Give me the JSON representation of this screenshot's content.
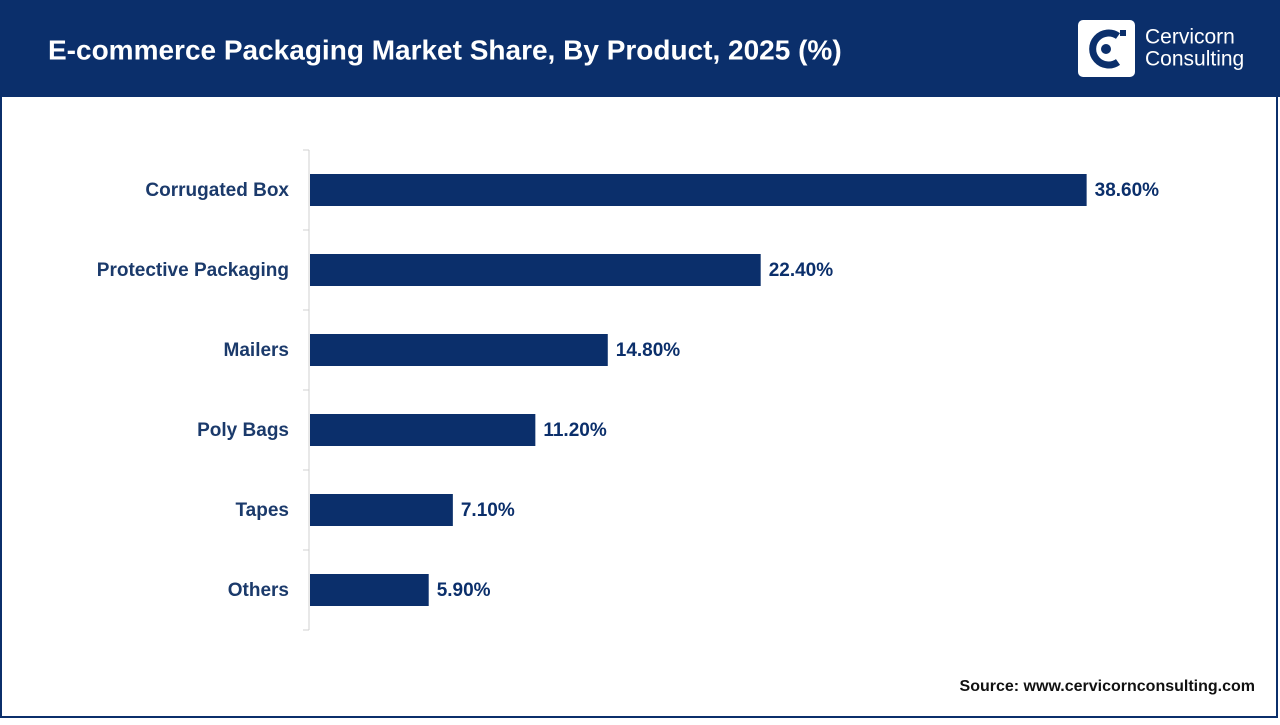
{
  "chart_data": {
    "type": "bar",
    "orientation": "horizontal",
    "title": "E-commerce Packaging Market Share, By Product, 2025 (%)",
    "categories": [
      "Corrugated Box",
      "Protective Packaging",
      "Mailers",
      "Poly Bags",
      "Tapes",
      "Others"
    ],
    "values": [
      38.6,
      22.4,
      14.8,
      11.2,
      7.1,
      5.9
    ],
    "value_labels": [
      "38.60%",
      "22.40%",
      "14.80%",
      "11.20%",
      "7.10%",
      "5.90%"
    ],
    "color": "#0b2f6b"
  },
  "logo": {
    "line1": "Cervicorn",
    "line2": "Consulting"
  },
  "source": "Source: www.cervicornconsulting.com"
}
